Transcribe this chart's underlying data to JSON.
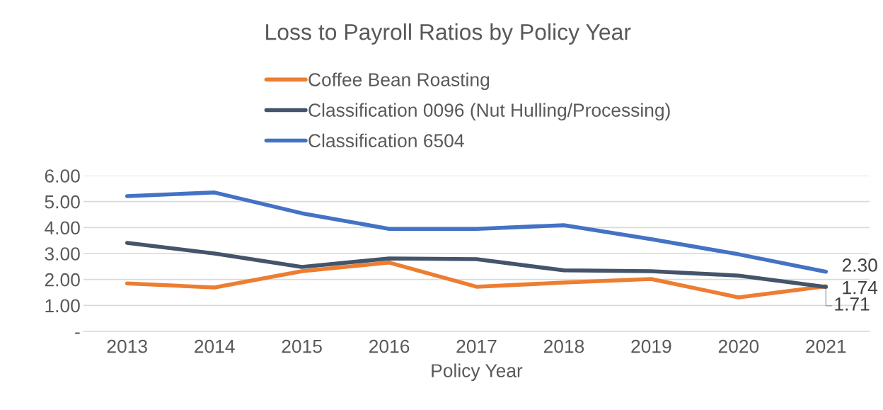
{
  "chart_data": {
    "type": "line",
    "title": "Loss to Payroll Ratios by Policy Year",
    "xlabel": "Policy Year",
    "categories": [
      "2013",
      "2014",
      "2015",
      "2016",
      "2017",
      "2018",
      "2019",
      "2020",
      "2021"
    ],
    "series": [
      {
        "name": "Coffee Bean Roasting",
        "color": "#ed7d31",
        "values": [
          1.85,
          1.69,
          2.32,
          2.65,
          1.72,
          1.88,
          2.02,
          1.31,
          1.74
        ],
        "value_labels": [
          null,
          null,
          null,
          null,
          null,
          null,
          null,
          null,
          "1.74"
        ]
      },
      {
        "name": "Classification 0096 (Nut Hulling/Processing)",
        "color": "#44546a",
        "values": [
          3.41,
          3.0,
          2.48,
          2.81,
          2.78,
          2.35,
          2.32,
          2.15,
          1.71
        ],
        "value_labels": [
          null,
          null,
          null,
          null,
          null,
          null,
          null,
          null,
          "1.71"
        ]
      },
      {
        "name": "Classification 6504",
        "color": "#4472c4",
        "values": [
          5.21,
          5.35,
          4.55,
          3.95,
          3.95,
          4.09,
          3.55,
          2.97,
          2.3
        ],
        "value_labels": [
          null,
          null,
          null,
          null,
          null,
          null,
          null,
          null,
          "2.30"
        ]
      }
    ],
    "ylim": [
      0,
      6
    ],
    "yticks": [
      {
        "value": 0,
        "label": "-"
      },
      {
        "value": 1,
        "label": "1.00"
      },
      {
        "value": 2,
        "label": "2.00"
      },
      {
        "value": 3,
        "label": "3.00"
      },
      {
        "value": 4,
        "label": "4.00"
      },
      {
        "value": 5,
        "label": "5.00"
      },
      {
        "value": 6,
        "label": "6.00"
      }
    ],
    "grid": "y",
    "legend": "top",
    "marker": "none",
    "line_style": "solid"
  }
}
